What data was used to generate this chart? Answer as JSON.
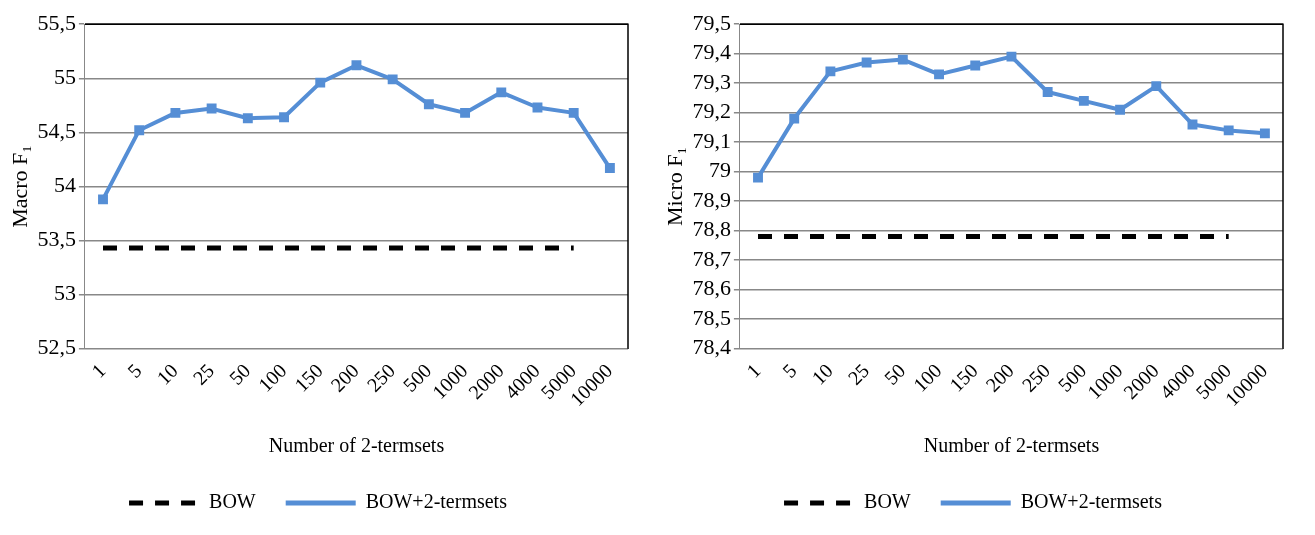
{
  "chart_data": [
    {
      "type": "line",
      "xlabel": "Number of 2-termsets",
      "ylabel": "Macro F₁",
      "categories": [
        "1",
        "5",
        "10",
        "25",
        "50",
        "100",
        "150",
        "200",
        "250",
        "500",
        "1000",
        "2000",
        "4000",
        "5000",
        "10000"
      ],
      "series": [
        {
          "name": "BOW",
          "color": "#000000",
          "line_style": "dashed",
          "marker": "none",
          "values": [
            53.43,
            53.43,
            53.43,
            53.43,
            53.43,
            53.43,
            53.43,
            53.43,
            53.43,
            53.43,
            53.43,
            53.43,
            53.43,
            53.43,
            null
          ]
        },
        {
          "name": "BOW+2-termsets",
          "color": "#558ed5",
          "line_style": "solid",
          "marker": "square",
          "values": [
            53.88,
            54.52,
            54.68,
            54.72,
            54.63,
            54.64,
            54.96,
            55.12,
            54.99,
            54.76,
            54.68,
            54.87,
            54.73,
            54.68,
            54.17
          ]
        }
      ],
      "ylim": [
        52.5,
        55.5
      ],
      "yticks": [
        {
          "value": 52.5,
          "label": "52,5"
        },
        53,
        {
          "value": 53.5,
          "label": "53,5"
        },
        54,
        {
          "value": 54.5,
          "label": "54,5"
        },
        55,
        {
          "value": 55.5,
          "label": "55,5"
        }
      ],
      "grid": "y",
      "legend": "bottom"
    },
    {
      "type": "line",
      "xlabel": "Number of 2-termsets",
      "ylabel": "Micro F₁",
      "categories": [
        "1",
        "5",
        "10",
        "25",
        "50",
        "100",
        "150",
        "200",
        "250",
        "500",
        "1000",
        "2000",
        "4000",
        "5000",
        "10000"
      ],
      "series": [
        {
          "name": "BOW",
          "color": "#000000",
          "line_style": "dashed",
          "marker": "none",
          "values": [
            78.78,
            78.78,
            78.78,
            78.78,
            78.78,
            78.78,
            78.78,
            78.78,
            78.78,
            78.78,
            78.78,
            78.78,
            78.78,
            78.78,
            null
          ]
        },
        {
          "name": "BOW+2-termsets",
          "color": "#558ed5",
          "line_style": "solid",
          "marker": "square",
          "values": [
            78.98,
            79.18,
            79.34,
            79.37,
            79.38,
            79.33,
            79.36,
            79.39,
            79.27,
            79.24,
            79.21,
            79.29,
            79.16,
            79.14,
            79.13
          ]
        }
      ],
      "ylim": [
        78.4,
        79.5
      ],
      "yticks": [
        {
          "value": 78.4,
          "label": "78,4"
        },
        {
          "value": 78.5,
          "label": "78,5"
        },
        {
          "value": 78.6,
          "label": "78,6"
        },
        {
          "value": 78.7,
          "label": "78,7"
        },
        {
          "value": 78.8,
          "label": "78,8"
        },
        {
          "value": 78.9,
          "label": "78,9"
        },
        79,
        {
          "value": 79.1,
          "label": "79,1"
        },
        {
          "value": 79.2,
          "label": "79,2"
        },
        {
          "value": 79.3,
          "label": "79,3"
        },
        {
          "value": 79.4,
          "label": "79,4"
        },
        {
          "value": 79.5,
          "label": "79,5"
        }
      ],
      "grid": "y",
      "legend": "bottom"
    }
  ]
}
